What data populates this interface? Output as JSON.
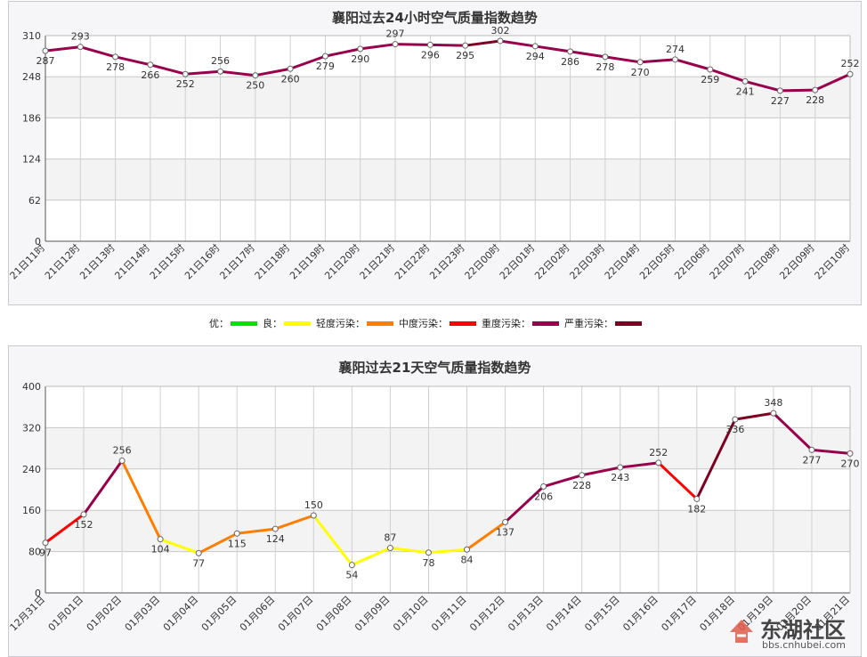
{
  "chart_data": [
    {
      "type": "line",
      "title": "襄阳过去24小时空气质量指数趋势",
      "categories": [
        "21日11时",
        "21日12时",
        "21日13时",
        "21日14时",
        "21日15时",
        "21日16时",
        "21日17时",
        "21日18时",
        "21日19时",
        "21日20时",
        "21日21时",
        "21日22时",
        "21日23时",
        "22日00时",
        "22日01时",
        "22日02时",
        "22日03时",
        "22日04时",
        "22日05时",
        "22日06时",
        "22日07时",
        "22日08时",
        "22日09时",
        "22日10时"
      ],
      "values": [
        287,
        293,
        278,
        266,
        252,
        256,
        250,
        260,
        279,
        290,
        297,
        296,
        295,
        302,
        294,
        286,
        278,
        270,
        274,
        259,
        241,
        227,
        228,
        252
      ],
      "value_labels": [
        "287",
        "293",
        "278",
        "266",
        "252",
        "256",
        "250",
        "260",
        "279",
        "290",
        "297",
        "296",
        "295",
        "302",
        "294",
        "286",
        "278",
        "270",
        "274",
        "259",
        "241",
        "227",
        "228",
        "252"
      ],
      "yticks": [
        "0",
        "62",
        "124",
        "186",
        "248",
        "310"
      ],
      "ylim": [
        0,
        310
      ],
      "grid": true
    },
    {
      "type": "line",
      "title": "襄阳过去21天空气质量指数趋势",
      "categories": [
        "12月31日",
        "01月01日",
        "01月02日",
        "01月03日",
        "01月04日",
        "01月05日",
        "01月06日",
        "01月07日",
        "01月08日",
        "01月09日",
        "01月10日",
        "01月11日",
        "01月12日",
        "01月13日",
        "01月14日",
        "01月15日",
        "01月16日",
        "01月17日",
        "01月18日",
        "01月19日",
        "01月20日",
        "01月21日"
      ],
      "values": [
        97,
        152,
        256,
        104,
        77,
        115,
        124,
        150,
        54,
        87,
        78,
        84,
        137,
        206,
        228,
        243,
        252,
        182,
        336,
        348,
        277,
        270
      ],
      "value_labels": [
        "97",
        "152",
        "256",
        "104",
        "77",
        "115",
        "124",
        "150",
        "54",
        "87",
        "78",
        "84",
        "137",
        "206",
        "228",
        "243",
        "252",
        "182",
        "336",
        "348",
        "277",
        "270"
      ],
      "yticks": [
        "0",
        "80",
        "160",
        "240",
        "320",
        "400"
      ],
      "ylim": [
        0,
        400
      ],
      "grid": true
    }
  ],
  "legend": [
    {
      "label": "优：",
      "color": "#00e400"
    },
    {
      "label": "良：",
      "color": "#ffff00"
    },
    {
      "label": "轻度污染：",
      "color": "#ff7e00"
    },
    {
      "label": "中度污染：",
      "color": "#ff0000"
    },
    {
      "label": "重度污染：",
      "color": "#99004c"
    },
    {
      "label": "严重污染：",
      "color": "#7e0023"
    }
  ],
  "watermark": {
    "title": "东湖社区",
    "url": "bbs.cnhubei.com"
  }
}
